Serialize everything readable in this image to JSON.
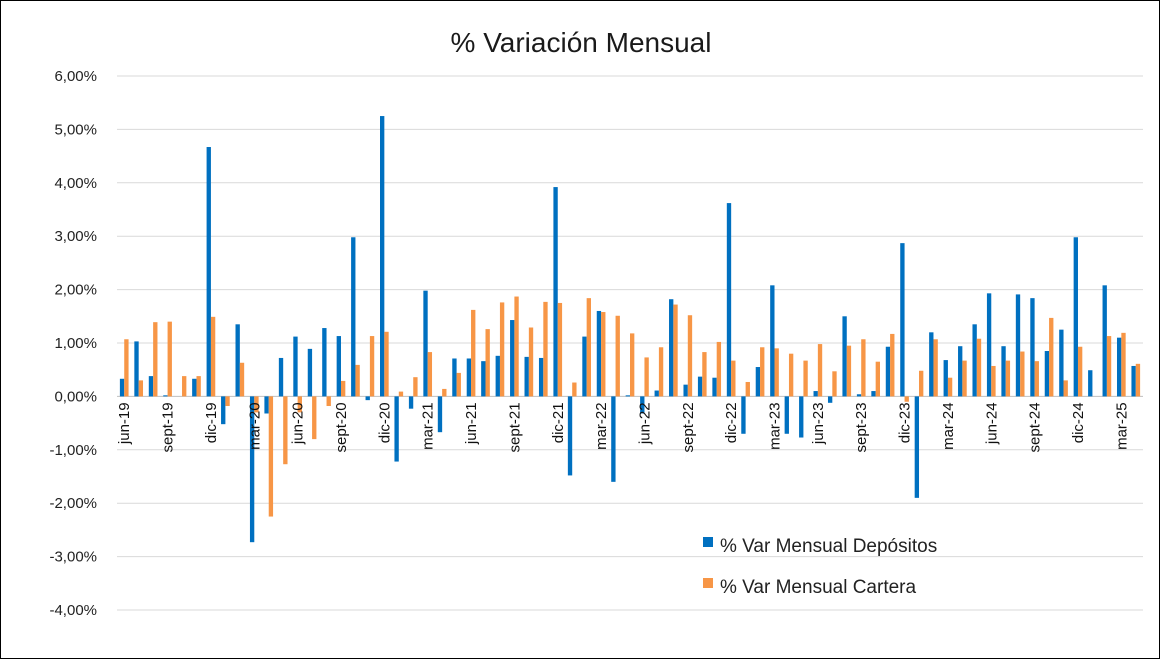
{
  "chart_data": {
    "type": "bar",
    "title": "% Variación Mensual",
    "xlabel": "",
    "ylabel": "",
    "ylim": [
      -4,
      6
    ],
    "yticks": [
      6,
      5,
      4,
      3,
      2,
      1,
      0,
      -1,
      -2,
      -3,
      -4
    ],
    "ytick_labels": [
      "6,00%",
      "5,00%",
      "4,00%",
      "3,00%",
      "2,00%",
      "1,00%",
      "0,00%",
      "-1,00%",
      "-2,00%",
      "-3,00%",
      "-4,00%"
    ],
    "grid": true,
    "legend_position": "bottom-right",
    "categories": [
      "jun-19",
      "jul-19",
      "ago-19",
      "sept-19",
      "oct-19",
      "nov-19",
      "dic-19",
      "ene-20",
      "feb-20",
      "mar-20",
      "abr-20",
      "may-20",
      "jun-20",
      "jul-20",
      "ago-20",
      "sept-20",
      "oct-20",
      "nov-20",
      "dic-20",
      "ene-21",
      "feb-21",
      "mar-21",
      "abr-21",
      "may-21",
      "jun-21",
      "jul-21",
      "ago-21",
      "sept-21",
      "oct-21",
      "nov-21",
      "dic-21",
      "ene-22",
      "feb-22",
      "mar-22",
      "abr-22",
      "may-22",
      "jun-22",
      "jul-22",
      "ago-22",
      "sept-22",
      "oct-22",
      "nov-22",
      "dic-22",
      "ene-23",
      "feb-23",
      "mar-23",
      "abr-23",
      "may-23",
      "jun-23",
      "jul-23",
      "ago-23",
      "sept-23",
      "oct-23",
      "nov-23",
      "dic-23",
      "ene-24",
      "feb-24",
      "mar-24",
      "abr-24",
      "may-24",
      "jun-24",
      "jul-24",
      "ago-24",
      "sept-24",
      "oct-24",
      "nov-24",
      "dic-24",
      "ene-25",
      "feb-25",
      "mar-25",
      "abr-25"
    ],
    "x_tick_labels": [
      "jun-19",
      "sept-19",
      "dic-19",
      "mar-20",
      "jun-20",
      "sept-20",
      "dic-20",
      "mar-21",
      "jun-21",
      "sept-21",
      "dic-21",
      "mar-22",
      "jun-22",
      "sept-22",
      "dic-22",
      "mar-23",
      "jun-23",
      "sept-23",
      "dic-23",
      "mar-24",
      "jun-24",
      "sept-24",
      "dic-24",
      "mar-25"
    ],
    "series": [
      {
        "name": "% Var Mensual Depósitos",
        "color": "#0070C0",
        "values": [
          0.33,
          1.03,
          0.38,
          0.02,
          0.0,
          0.33,
          4.67,
          -0.52,
          1.35,
          -2.73,
          -0.32,
          0.72,
          1.12,
          0.89,
          1.28,
          1.13,
          2.98,
          -0.07,
          5.25,
          -1.22,
          -0.23,
          1.98,
          -0.67,
          0.71,
          0.71,
          0.66,
          0.76,
          1.43,
          0.74,
          0.72,
          3.92,
          -1.48,
          1.12,
          1.6,
          -1.6,
          0.02,
          -0.32,
          0.11,
          1.82,
          0.22,
          0.37,
          0.35,
          3.62,
          -0.7,
          0.55,
          2.08,
          -0.7,
          -0.77,
          0.1,
          -0.12,
          1.5,
          0.04,
          0.1,
          0.93,
          2.87,
          -1.9,
          1.2,
          0.68,
          0.94,
          1.35,
          1.93,
          0.94,
          1.91,
          1.84,
          0.85,
          1.25,
          2.98,
          0.49,
          2.08,
          1.1,
          0.57
        ]
      },
      {
        "name": "% Var Mensual Cartera",
        "color": "#F79646",
        "values": [
          1.07,
          0.3,
          1.39,
          1.4,
          0.38,
          0.38,
          1.49,
          -0.18,
          0.63,
          -0.3,
          -2.25,
          -1.27,
          -0.3,
          -0.8,
          -0.18,
          0.29,
          0.59,
          1.13,
          1.21,
          0.09,
          0.36,
          0.83,
          0.14,
          0.44,
          1.62,
          1.26,
          1.76,
          1.87,
          1.29,
          1.77,
          1.75,
          0.26,
          1.84,
          1.58,
          1.51,
          1.18,
          0.73,
          0.92,
          1.72,
          1.52,
          0.83,
          1.02,
          0.67,
          0.27,
          0.92,
          0.9,
          0.8,
          0.67,
          0.98,
          0.47,
          0.95,
          1.07,
          0.65,
          1.17,
          -0.1,
          0.48,
          1.07,
          0.35,
          0.67,
          1.08,
          0.57,
          0.67,
          0.84,
          0.66,
          1.47,
          0.3,
          0.93,
          0.0,
          1.13,
          1.19,
          0.61
        ]
      }
    ]
  }
}
